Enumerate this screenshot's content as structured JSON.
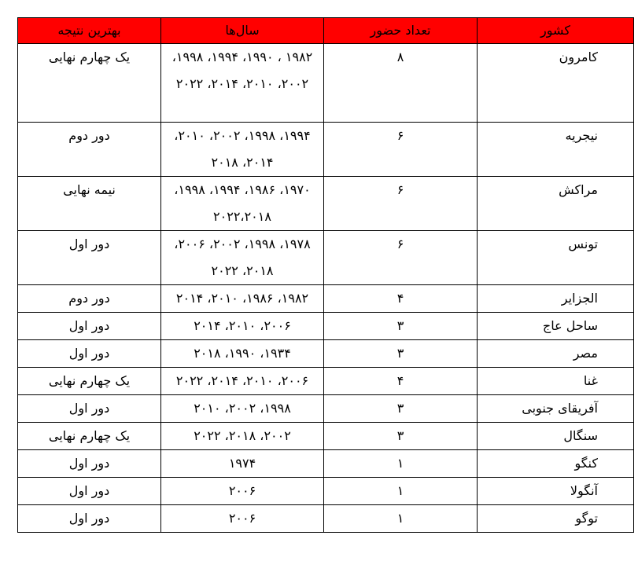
{
  "headers": [
    "کشور",
    "تعداد حضور",
    "سال‌ها",
    "بهترین نتیجه"
  ],
  "rows": [
    [
      "کامرون",
      "۸",
      "۱۹۸۲ ، ۱۹۹۰، ۱۹۹۴، ۱۹۹۸، ۲۰۰۲، ۲۰۱۰، ۲۰۱۴، ۲۰۲۲",
      "یک چهارم نهایی"
    ],
    [
      "نیجریه",
      "۶",
      "۱۹۹۴، ۱۹۹۸، ۲۰۰۲، ۲۰۱۰، ۲۰۱۴، ۲۰۱۸",
      "دور دوم"
    ],
    [
      "مراکش",
      "۶",
      "۱۹۷۰، ۱۹۸۶، ۱۹۹۴، ۱۹۹۸، ۲۰۲۲،۲۰۱۸",
      "نیمه نهایی"
    ],
    [
      "تونس",
      "۶",
      "۱۹۷۸، ۱۹۹۸، ۲۰۰۲، ۲۰۰۶، ۲۰۱۸، ۲۰۲۲",
      "دور اول"
    ],
    [
      "الجزایر",
      "۴",
      "۱۹۸۲، ۱۹۸۶، ۲۰۱۰، ۲۰۱۴",
      "دور دوم"
    ],
    [
      "ساحل عاج",
      "۳",
      "۲۰۰۶، ۲۰۱۰، ۲۰۱۴",
      "دور اول"
    ],
    [
      "مصر",
      "۳",
      "۱۹۳۴، ۱۹۹۰، ۲۰۱۸",
      "دور اول"
    ],
    [
      "غنا",
      "۴",
      "۲۰۰۶، ۲۰۱۰، ۲۰۱۴، ۲۰۲۲",
      "یک چهارم نهایی"
    ],
    [
      "آفریقای جنوبی",
      "۳",
      "۱۹۹۸، ۲۰۰۲، ۲۰۱۰",
      "دور اول"
    ],
    [
      "سنگال",
      "۳",
      "۲۰۰۲، ۲۰۱۸، ۲۰۲۲",
      "یک چهارم نهایی"
    ],
    [
      "کنگو",
      "۱",
      "۱۹۷۴",
      "دور اول"
    ],
    [
      "آنگولا",
      "۱",
      "۲۰۰۶",
      "دور اول"
    ],
    [
      "توگو",
      "۱",
      "۲۰۰۶",
      "دور اول"
    ]
  ],
  "colors": {
    "header_bg": "#ff0000"
  }
}
